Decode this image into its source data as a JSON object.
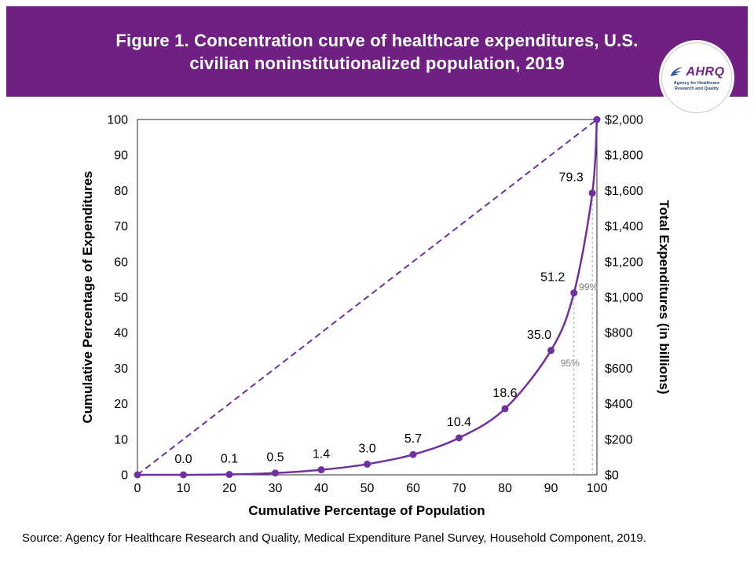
{
  "header": {
    "title_line1": "Figure 1. Concentration curve of healthcare expenditures, U.S.",
    "title_line2": "civilian noninstitutionalized population, 2019",
    "banner_color": "#702082"
  },
  "logo": {
    "name": "AHRQ",
    "tagline_line1": "Agency for Healthcare",
    "tagline_line2": "Research and Quality"
  },
  "chart_data": {
    "type": "line",
    "title": "Figure 1. Concentration curve of healthcare expenditures, U.S. civilian noninstitutionalized population, 2019",
    "xlabel": "Cumulative Percentage of Population",
    "ylabel": "Cumulative Percentage of Expenditures",
    "ylabel_right": "Total Expenditures (in billions)",
    "xlim": [
      0,
      100
    ],
    "ylim": [
      0,
      100
    ],
    "ylim_right": [
      0,
      2000
    ],
    "x_ticks": [
      0,
      10,
      20,
      30,
      40,
      50,
      60,
      70,
      80,
      90,
      100
    ],
    "y_ticks": [
      0,
      10,
      20,
      30,
      40,
      50,
      60,
      70,
      80,
      90,
      100
    ],
    "y_ticks_right": [
      "$0",
      "$200",
      "$400",
      "$600",
      "$800",
      "$1,000",
      "$1,200",
      "$1,400",
      "$1,600",
      "$1,800",
      "$2,000"
    ],
    "grid": false,
    "legend": "none",
    "line_color": "#7030A0",
    "guide_color": "#808080",
    "series": [
      {
        "name": "concentration-curve",
        "style": "solid",
        "x": [
          0,
          10,
          20,
          30,
          40,
          50,
          60,
          70,
          80,
          90,
          95,
          99,
          100
        ],
        "y": [
          0,
          0.0,
          0.1,
          0.5,
          1.4,
          3.0,
          5.7,
          10.4,
          18.6,
          35.0,
          51.2,
          79.3,
          100
        ],
        "labels": [
          "",
          "0.0",
          "0.1",
          "0.5",
          "1.4",
          "3.0",
          "5.7",
          "10.4",
          "18.6",
          "35.0",
          "51.2",
          "79.3",
          ""
        ]
      },
      {
        "name": "line-of-equality",
        "style": "dashed",
        "x": [
          0,
          100
        ],
        "y": [
          0,
          100
        ],
        "labels": [
          "",
          ""
        ]
      }
    ],
    "reference_lines": [
      {
        "x": 95,
        "y": 51.2,
        "label": "95%"
      },
      {
        "x": 99,
        "y": 79.3,
        "label": "99%"
      }
    ]
  },
  "footer": {
    "source": "Source: Agency for Healthcare Research and Quality, Medical Expenditure Panel Survey, Household Component, 2019."
  }
}
